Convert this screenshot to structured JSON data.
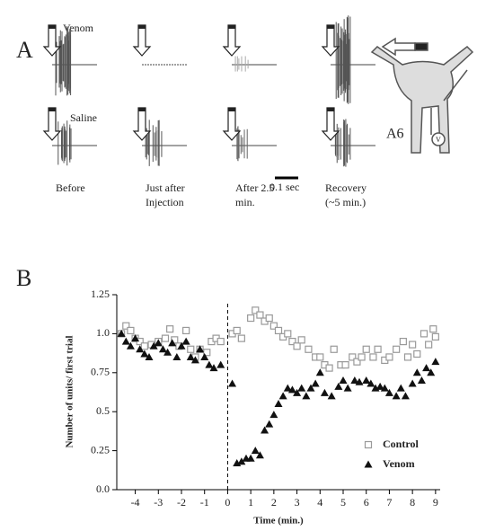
{
  "panel_a": {
    "label": "A",
    "rows": [
      "Venom",
      "Saline"
    ],
    "scale_bar": "0.1 sec",
    "captions": [
      [
        "Before"
      ],
      [
        "Just after",
        "Injection"
      ],
      [
        "After 2.5",
        "min."
      ],
      [
        "Recovery",
        "(~5 min.)"
      ]
    ],
    "diagram": {
      "ganglion": "A6",
      "electrode": "V"
    }
  },
  "chart_data": {
    "type": "scatter",
    "label": "B",
    "xlabel": "Time (min.)",
    "ylabel": "Number of units/ first trial",
    "xlim": [
      -4.8,
      9.2
    ],
    "ylim": [
      0,
      1.25
    ],
    "xticks": [
      -4,
      -3,
      -2,
      -1,
      0,
      1,
      2,
      3,
      4,
      5,
      6,
      7,
      8,
      9
    ],
    "yticks": [
      {
        "value": 0,
        "label": "0.0"
      },
      0.25,
      0.5,
      0.75,
      {
        "value": 1,
        "label": "1.0"
      },
      1.25
    ],
    "vline": 0,
    "legend": "lower right",
    "series": [
      {
        "name": "Control",
        "marker": "square",
        "color": "#999999",
        "x": [
          -4.6,
          -4.4,
          -4.2,
          -4.0,
          -3.8,
          -3.6,
          -3.3,
          -3.0,
          -2.7,
          -2.5,
          -2.3,
          -2.1,
          -1.8,
          -1.6,
          -1.4,
          -1.2,
          -0.9,
          -0.7,
          -0.5,
          -0.3,
          0.2,
          0.4,
          0.6,
          1.0,
          1.2,
          1.4,
          1.6,
          1.8,
          2.0,
          2.2,
          2.4,
          2.6,
          2.8,
          3.0,
          3.2,
          3.5,
          3.8,
          4.0,
          4.2,
          4.4,
          4.6,
          4.9,
          5.1,
          5.4,
          5.6,
          5.8,
          6.0,
          6.3,
          6.5,
          6.8,
          7.0,
          7.3,
          7.6,
          7.8,
          8.0,
          8.2,
          8.5,
          8.7,
          8.9,
          9.0
        ],
        "values": [
          1.0,
          1.05,
          1.02,
          0.97,
          0.95,
          0.92,
          0.93,
          0.95,
          0.97,
          1.03,
          0.96,
          0.92,
          1.02,
          0.9,
          0.85,
          0.9,
          0.88,
          0.95,
          0.97,
          0.95,
          1.0,
          1.02,
          0.97,
          1.1,
          1.15,
          1.12,
          1.08,
          1.1,
          1.05,
          1.02,
          0.98,
          1.0,
          0.95,
          0.92,
          0.96,
          0.9,
          0.85,
          0.85,
          0.8,
          0.78,
          0.9,
          0.8,
          0.8,
          0.85,
          0.82,
          0.85,
          0.9,
          0.85,
          0.9,
          0.83,
          0.85,
          0.9,
          0.95,
          0.85,
          0.93,
          0.87,
          1.0,
          0.93,
          1.03,
          0.98
        ]
      },
      {
        "name": "Venom",
        "marker": "triangle",
        "color": "#111111",
        "x": [
          -4.6,
          -4.4,
          -4.2,
          -4.0,
          -3.8,
          -3.6,
          -3.4,
          -3.2,
          -3.0,
          -2.8,
          -2.6,
          -2.4,
          -2.2,
          -2.0,
          -1.8,
          -1.6,
          -1.4,
          -1.2,
          -1.0,
          -0.8,
          -0.6,
          -0.3,
          0.2,
          0.4,
          0.6,
          0.8,
          1.0,
          1.2,
          1.4,
          1.6,
          1.8,
          2.0,
          2.2,
          2.4,
          2.6,
          2.8,
          3.0,
          3.2,
          3.4,
          3.6,
          3.8,
          4.0,
          4.2,
          4.5,
          4.8,
          5.0,
          5.2,
          5.5,
          5.7,
          6.0,
          6.2,
          6.4,
          6.6,
          6.8,
          7.0,
          7.3,
          7.5,
          7.7,
          8.0,
          8.2,
          8.4,
          8.6,
          8.8,
          9.0
        ],
        "values": [
          1.0,
          0.95,
          0.92,
          0.97,
          0.9,
          0.87,
          0.85,
          0.92,
          0.94,
          0.9,
          0.88,
          0.94,
          0.85,
          0.92,
          0.95,
          0.85,
          0.83,
          0.9,
          0.85,
          0.8,
          0.78,
          0.8,
          0.68,
          0.17,
          0.18,
          0.2,
          0.2,
          0.25,
          0.22,
          0.38,
          0.42,
          0.48,
          0.55,
          0.6,
          0.65,
          0.64,
          0.62,
          0.65,
          0.6,
          0.65,
          0.68,
          0.75,
          0.62,
          0.6,
          0.66,
          0.7,
          0.65,
          0.7,
          0.69,
          0.7,
          0.68,
          0.65,
          0.66,
          0.65,
          0.62,
          0.6,
          0.65,
          0.6,
          0.68,
          0.75,
          0.7,
          0.78,
          0.75,
          0.82
        ]
      }
    ]
  }
}
